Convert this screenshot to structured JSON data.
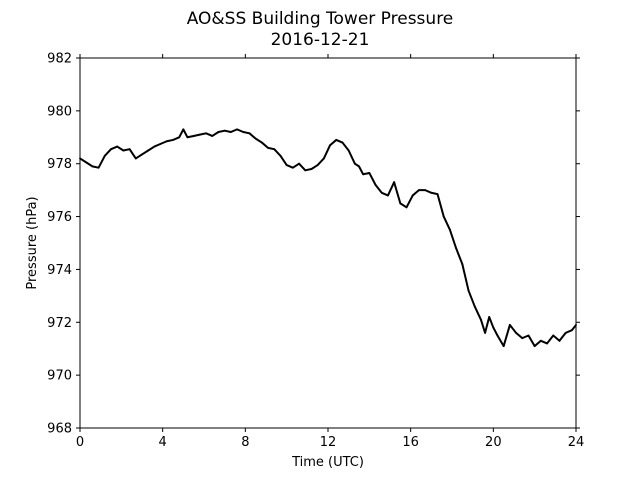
{
  "chart_data": {
    "type": "line",
    "title": "AO&SS Building Tower Pressure",
    "subtitle": "2016-12-21",
    "xlabel": "Time (UTC)",
    "ylabel": "Pressure (hPa)",
    "xlim": [
      0,
      24
    ],
    "ylim": [
      968,
      982
    ],
    "xticks": [
      "0",
      "4",
      "8",
      "12",
      "16",
      "20",
      "24"
    ],
    "yticks": [
      "968",
      "970",
      "972",
      "974",
      "976",
      "978",
      "980",
      "982"
    ],
    "grid": false,
    "legend": "none",
    "line_color": "#000000",
    "series": [
      {
        "x": [
          0,
          0.3,
          0.6,
          0.9,
          1.2,
          1.5,
          1.8,
          2.1,
          2.4,
          2.7,
          3.0,
          3.3,
          3.6,
          3.9,
          4.2,
          4.5,
          4.8,
          5.0,
          5.2,
          5.5,
          5.8,
          6.1,
          6.4,
          6.7,
          7.0,
          7.3,
          7.6,
          7.9,
          8.2,
          8.5,
          8.8,
          9.1,
          9.4,
          9.7,
          10.0,
          10.3,
          10.6,
          10.9,
          11.2,
          11.5,
          11.8,
          12.1,
          12.4,
          12.7,
          13.0,
          13.3,
          13.5,
          13.7,
          14.0,
          14.3,
          14.6,
          14.9,
          15.2,
          15.5,
          15.8,
          16.1,
          16.4,
          16.7,
          17.0,
          17.3,
          17.6,
          17.9,
          18.2,
          18.5,
          18.8,
          19.1,
          19.4,
          19.6,
          19.8,
          20.0,
          20.2,
          20.5,
          20.8,
          21.1,
          21.4,
          21.7,
          22.0,
          22.3,
          22.6,
          22.9,
          23.2,
          23.5,
          23.8,
          24.0
        ],
        "y": [
          978.2,
          978.05,
          977.9,
          977.85,
          978.3,
          978.55,
          978.65,
          978.5,
          978.55,
          978.2,
          978.35,
          978.5,
          978.65,
          978.75,
          978.85,
          978.9,
          979.0,
          979.3,
          979.0,
          979.05,
          979.1,
          979.15,
          979.05,
          979.2,
          979.25,
          979.2,
          979.3,
          979.2,
          979.15,
          978.95,
          978.8,
          978.6,
          978.55,
          978.3,
          977.95,
          977.85,
          978.0,
          977.75,
          977.8,
          977.95,
          978.2,
          978.7,
          978.9,
          978.8,
          978.5,
          978.0,
          977.9,
          977.6,
          977.65,
          977.2,
          976.9,
          976.8,
          977.3,
          976.5,
          976.35,
          976.8,
          977.0,
          977.0,
          976.9,
          976.85,
          976.0,
          975.5,
          974.8,
          974.2,
          973.2,
          972.6,
          972.1,
          971.6,
          972.2,
          971.8,
          971.5,
          971.1,
          971.9,
          971.6,
          971.4,
          971.5,
          971.1,
          971.3,
          971.2,
          971.5,
          971.3,
          971.6,
          971.7,
          971.9
        ]
      }
    ]
  }
}
